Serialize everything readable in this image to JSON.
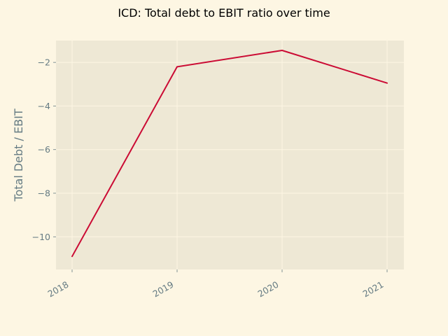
{
  "chart_data": {
    "type": "line",
    "title": "ICD: Total debt to EBIT ratio over time",
    "xlabel": "",
    "ylabel": "Total Debt / EBIT",
    "categories": [
      "2018",
      "2019",
      "2020",
      "2021"
    ],
    "series": [
      {
        "values": [
          -10.9,
          -2.2,
          -1.45,
          -2.95
        ]
      }
    ],
    "yticks": [
      "−10",
      "−8",
      "−6",
      "−4",
      "−2"
    ],
    "ylim": [
      -11.5,
      -1.0
    ],
    "grid": true,
    "legend": "none"
  },
  "colors": {
    "figure_background": "#fdf6e3",
    "plot_background": "#eee8d5",
    "grid": "#fdf6e3",
    "line": "#cb0b34",
    "tick_text": "#657b83"
  }
}
